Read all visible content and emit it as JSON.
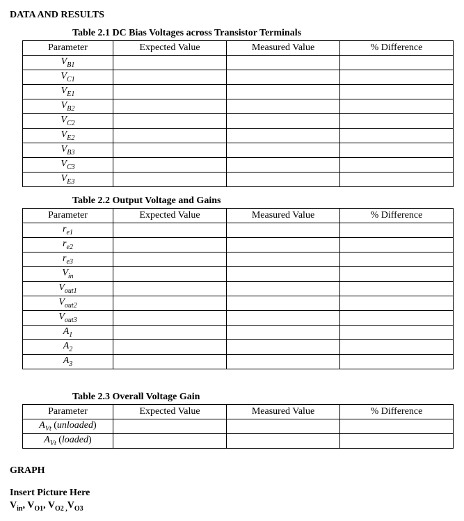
{
  "heading": "DATA AND RESULTS",
  "graph_heading": "GRAPH",
  "insert_text": "Insert Picture Here",
  "vin_line_html": "V<sub>in</sub>, V<sub>O1</sub>, V<sub>O2 ,</sub>V<sub>O3</sub>",
  "columns": {
    "param": "Parameter",
    "expected": "Expected Value",
    "measured": "Measured Value",
    "diff": "% Difference"
  },
  "tables": [
    {
      "caption": "Table 2.1 DC Bias Voltages across Transistor Terminals",
      "rows": [
        {
          "html": "V<sub>B1</sub>"
        },
        {
          "html": "V<sub>C1</sub>"
        },
        {
          "html": "V<sub>E1</sub>"
        },
        {
          "html": "V<sub>B2</sub>"
        },
        {
          "html": "V<sub>C2</sub>"
        },
        {
          "html": "V<sub>E2</sub>"
        },
        {
          "html": "V<sub>B3</sub>"
        },
        {
          "html": "V<sub>C3</sub>"
        },
        {
          "html": "V<sub>E3</sub>"
        }
      ]
    },
    {
      "caption": "Table 2.2 Output Voltage and Gains",
      "rows": [
        {
          "html": "r<sub>e1</sub>"
        },
        {
          "html": "r<sub>e2</sub>"
        },
        {
          "html": "r<sub>e3</sub>"
        },
        {
          "html": "V<sub>in</sub>"
        },
        {
          "html": "V<sub>out1</sub>"
        },
        {
          "html": "V<sub>out2</sub>"
        },
        {
          "html": "V<sub>out3</sub>"
        },
        {
          "html": "A<sub>1</sub>"
        },
        {
          "html": "A<sub>2</sub>"
        },
        {
          "html": "A<sub>3</sub>"
        }
      ]
    },
    {
      "caption": "Table 2.3 Overall Voltage Gain",
      "rows": [
        {
          "html": "A<sub>Vt</sub> <span class=\"st\">(</span>unloaded<span class=\"st\">)</span>"
        },
        {
          "html": "A<sub>Vt</sub> <span class=\"st\">(</span>loaded<span class=\"st\">)</span>"
        }
      ]
    }
  ]
}
